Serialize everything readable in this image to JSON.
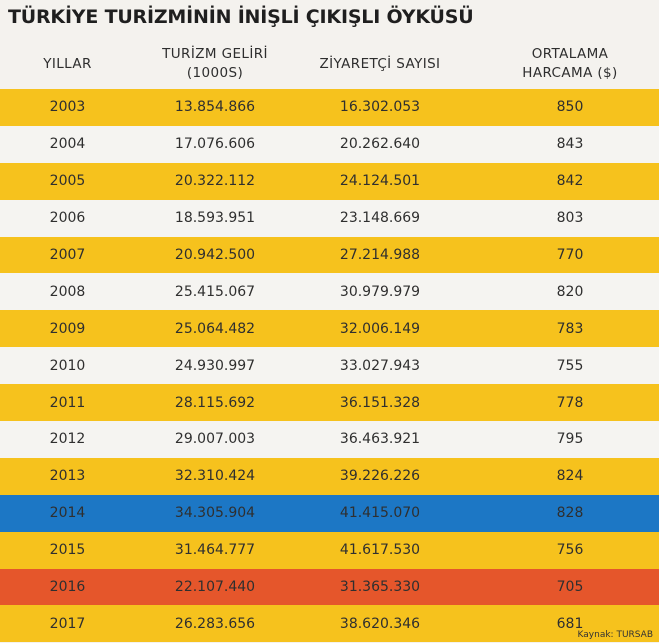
{
  "title": "TÜRKİYE TURİZMİNİN İNİŞLİ ÇIKIŞLI ÖYKÜSÜ",
  "headers": {
    "years": "YILLAR",
    "income_line1": "TURİZM GELİRİ",
    "income_line2": "(1000S)",
    "visitors": "ZİYARETÇİ SAYISI",
    "spend_line1": "ORTALAMA",
    "spend_line2": "HARCAMA ($)"
  },
  "rows": [
    {
      "year": "2003",
      "income": "13.854.866",
      "visitors": "16.302.053",
      "spend": "850",
      "color": "yellow"
    },
    {
      "year": "2004",
      "income": "17.076.606",
      "visitors": "20.262.640",
      "spend": "843",
      "color": "white"
    },
    {
      "year": "2005",
      "income": "20.322.112",
      "visitors": "24.124.501",
      "spend": "842",
      "color": "yellow"
    },
    {
      "year": "2006",
      "income": "18.593.951",
      "visitors": "23.148.669",
      "spend": "803",
      "color": "white"
    },
    {
      "year": "2007",
      "income": "20.942.500",
      "visitors": "27.214.988",
      "spend": "770",
      "color": "yellow"
    },
    {
      "year": "2008",
      "income": "25.415.067",
      "visitors": "30.979.979",
      "spend": "820",
      "color": "white"
    },
    {
      "year": "2009",
      "income": "25.064.482",
      "visitors": "32.006.149",
      "spend": "783",
      "color": "yellow"
    },
    {
      "year": "2010",
      "income": "24.930.997",
      "visitors": "33.027.943",
      "spend": "755",
      "color": "white"
    },
    {
      "year": "2011",
      "income": "28.115.692",
      "visitors": "36.151.328",
      "spend": "778",
      "color": "yellow"
    },
    {
      "year": "2012",
      "income": "29.007.003",
      "visitors": "36.463.921",
      "spend": "795",
      "color": "white"
    },
    {
      "year": "2013",
      "income": "32.310.424",
      "visitors": "39.226.226",
      "spend": "824",
      "color": "yellow"
    },
    {
      "year": "2014",
      "income": "34.305.904",
      "visitors": "41.415.070",
      "spend": "828",
      "color": "blue"
    },
    {
      "year": "2015",
      "income": "31.464.777",
      "visitors": "41.617.530",
      "spend": "756",
      "color": "yellow"
    },
    {
      "year": "2016",
      "income": "22.107.440",
      "visitors": "31.365.330",
      "spend": "705",
      "color": "red"
    },
    {
      "year": "2017",
      "income": "26.283.656",
      "visitors": "38.620.346",
      "spend": "681",
      "color": "yellow"
    }
  ],
  "colors": {
    "yellow": "#f6c21d",
    "white": "#f5f4f1",
    "blue": "#1c77c5",
    "red": "#e5562b"
  },
  "source": "Kaynak: TURSAB"
}
